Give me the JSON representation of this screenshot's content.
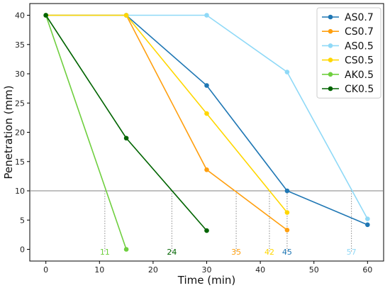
{
  "chart_data": {
    "type": "line",
    "title": "",
    "xlabel": "Time (min)",
    "ylabel": "Penetration (mm)",
    "xlim": [
      -3,
      63
    ],
    "ylim": [
      -2,
      42
    ],
    "xticks": [
      0,
      10,
      20,
      30,
      40,
      50,
      60
    ],
    "yticks": [
      0,
      5,
      10,
      15,
      20,
      25,
      30,
      35,
      40
    ],
    "reference_line_y": 10,
    "legend_position": "top-right",
    "grid": false,
    "series": [
      {
        "name": "AS0.7",
        "color": "#1f77b4",
        "x": [
          0,
          15,
          30,
          45,
          60
        ],
        "y": [
          40,
          40,
          28,
          10,
          4.2
        ]
      },
      {
        "name": "CS0.7",
        "color": "#ff9f0f",
        "x": [
          0,
          15,
          30,
          45
        ],
        "y": [
          40,
          40,
          13.6,
          3.3
        ]
      },
      {
        "name": "AS0.5",
        "color": "#8fd9f7",
        "x": [
          0,
          15,
          30,
          45,
          60
        ],
        "y": [
          40,
          40,
          40,
          30.3,
          5.2
        ]
      },
      {
        "name": "CS0.5",
        "color": "#ffd700",
        "x": [
          0,
          15,
          30,
          45
        ],
        "y": [
          40,
          40,
          23.2,
          6.3
        ]
      },
      {
        "name": "AK0.5",
        "color": "#6fcf3f",
        "x": [
          0,
          15
        ],
        "y": [
          40,
          0
        ]
      },
      {
        "name": "CK0.5",
        "color": "#006400",
        "x": [
          0,
          15,
          30
        ],
        "y": [
          40,
          19,
          3.2
        ]
      }
    ],
    "crossings": [
      {
        "x": 11,
        "label": "11",
        "color": "#6fcf3f"
      },
      {
        "x": 23.5,
        "label": "24",
        "color": "#006400"
      },
      {
        "x": 35.5,
        "label": "35",
        "color": "#ff9f0f"
      },
      {
        "x": 41.7,
        "label": "42",
        "color": "#ffd700"
      },
      {
        "x": 45,
        "label": "45",
        "color": "#1f77b4"
      },
      {
        "x": 57,
        "label": "57",
        "color": "#8fd9f7"
      }
    ]
  }
}
